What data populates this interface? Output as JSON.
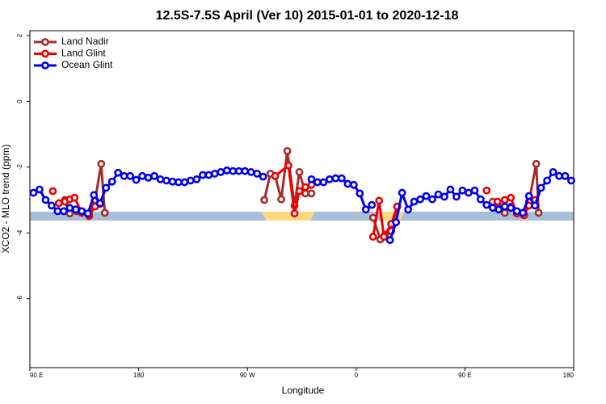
{
  "chart_data": {
    "type": "line",
    "title": "12.5S-7.5S April (Ver 10)   2015-01-01 to 2020-12-18",
    "xlabel": "Longitude",
    "ylabel": "XCO2 - MLO trend (ppm)",
    "xlim": [
      90,
      540
    ],
    "ylim": [
      -8.1,
      2.15
    ],
    "xticks": [
      {
        "value": 90,
        "label": "90 E"
      },
      {
        "value": 180,
        "label": "180"
      },
      {
        "value": 270,
        "label": "90 W"
      },
      {
        "value": 360,
        "label": "0"
      },
      {
        "value": 450,
        "label": "90 E"
      },
      {
        "value": 540,
        "label": "180"
      }
    ],
    "yticks": [
      2,
      0,
      -2,
      -4,
      -6
    ],
    "legend": "upper left",
    "series": [
      {
        "name": "Land Nadir",
        "color": "#a52a2a",
        "x": [
          114,
          119,
          123,
          129,
          139,
          144,
          149,
          152,
          null,
          284,
          289,
          293,
          298,
          303,
          309,
          313,
          318,
          323,
          null,
          374,
          380,
          384,
          389,
          394,
          null,
          473,
          477,
          483,
          488,
          493,
          498,
          503,
          509,
          511
        ],
        "values": [
          -3.1,
          -3.0,
          -3.41,
          -3.34,
          -3.49,
          -3.0,
          -1.9,
          -3.39,
          null,
          -3.0,
          -2.2,
          -2.27,
          -2.98,
          -1.51,
          -3.17,
          -2.15,
          -2.8,
          -2.8,
          null,
          -3.54,
          -4.2,
          -4.05,
          -3.95,
          -3.2,
          null,
          -3.05,
          -3.1,
          -3.39,
          -3.2,
          -3.41,
          -3.44,
          -3.05,
          -1.9,
          -3.39
        ]
      },
      {
        "name": "Land Glint",
        "color": "#ee0000",
        "x": [
          109,
          null,
          114,
          119,
          123,
          127,
          133,
          139,
          144,
          148,
          null,
          293,
          304,
          309,
          313,
          318,
          323,
          null,
          374,
          379,
          383,
          389,
          394,
          null,
          468,
          null,
          477,
          483,
          488,
          493,
          499,
          503,
          508
        ],
        "values": [
          -2.73,
          null,
          -3.1,
          -3.05,
          -2.98,
          -2.93,
          -3.39,
          -3.46,
          -3.2,
          -3.12,
          null,
          -2.27,
          -1.95,
          -3.41,
          -2.73,
          -2.61,
          -2.54,
          null,
          -4.12,
          -3.02,
          -4.12,
          -3.73,
          -3.2,
          null,
          -2.71,
          null,
          -3.05,
          -3.0,
          -2.93,
          -3.41,
          -3.46,
          -3.17,
          -3.0
        ]
      },
      {
        "name": "Ocean Glint",
        "color": "#0000ee",
        "x": [
          93,
          98,
          103,
          108,
          113,
          118,
          123,
          128,
          133,
          138,
          143,
          148,
          153,
          158,
          163,
          168,
          173,
          178,
          183,
          188,
          193,
          198,
          203,
          208,
          213,
          218,
          223,
          228,
          233,
          238,
          243,
          248,
          253,
          258,
          263,
          268,
          273,
          278,
          283,
          null,
          323,
          328,
          333,
          338,
          343,
          348,
          353,
          358,
          363,
          368,
          373,
          null,
          388,
          393,
          398,
          403,
          408,
          413,
          418,
          423,
          428,
          433,
          438,
          443,
          448,
          453,
          458,
          463,
          468,
          473,
          478,
          483,
          488,
          493,
          498,
          503,
          508,
          513,
          518,
          523,
          528,
          533,
          538
        ],
        "values": [
          -2.78,
          -2.68,
          -3.0,
          -3.17,
          -3.34,
          -3.34,
          -3.24,
          -3.29,
          -3.34,
          -3.41,
          -2.85,
          -3.1,
          -2.63,
          -2.44,
          -2.17,
          -2.27,
          -2.27,
          -2.39,
          -2.27,
          -2.32,
          -2.27,
          -2.37,
          -2.41,
          -2.44,
          -2.46,
          -2.46,
          -2.41,
          -2.37,
          -2.24,
          -2.24,
          -2.2,
          -2.15,
          -2.1,
          -2.12,
          -2.12,
          -2.12,
          -2.15,
          -2.2,
          -2.29,
          null,
          -2.37,
          -2.46,
          -2.46,
          -2.37,
          -2.34,
          -2.34,
          -2.51,
          -2.54,
          -2.8,
          -3.29,
          -3.15,
          null,
          -4.22,
          -3.68,
          -2.78,
          -3.29,
          -3.05,
          -2.98,
          -2.88,
          -2.98,
          -2.83,
          -2.9,
          -2.68,
          -2.9,
          -2.71,
          -2.78,
          -2.71,
          -2.98,
          -3.15,
          -3.24,
          -3.29,
          -3.2,
          -3.24,
          -3.34,
          -3.39,
          -2.88,
          -3.17,
          -2.63,
          -2.41,
          -2.15,
          -2.27,
          -2.27,
          -2.41
        ]
      }
    ]
  }
}
